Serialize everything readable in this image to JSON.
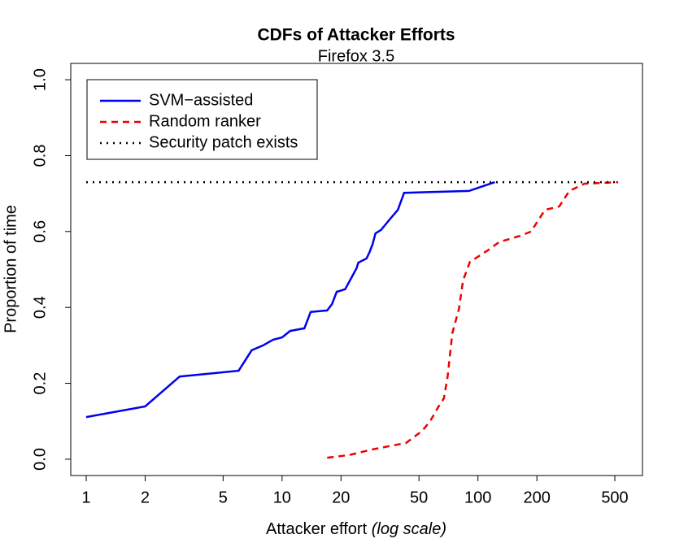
{
  "chart_data": {
    "type": "line",
    "title": "CDFs of Attacker Efforts",
    "subtitle": "Firefox 3.5",
    "xlabel": "Attacker effort",
    "xlabel_note": "(log scale)",
    "ylabel": "Proportion of time",
    "xscale": "log",
    "xlim": [
      0.834,
      692
    ],
    "ylim": [
      -0.043,
      1.043
    ],
    "xticks": [
      1,
      2,
      5,
      10,
      20,
      50,
      100,
      200,
      500
    ],
    "yticks": [
      {
        "value": 0,
        "label": "0.0"
      },
      {
        "value": 0.2,
        "label": "0.2"
      },
      {
        "value": 0.4,
        "label": "0.4"
      },
      {
        "value": 0.6,
        "label": "0.6"
      },
      {
        "value": 0.8,
        "label": "0.8"
      },
      {
        "value": 1,
        "label": "1.0"
      }
    ],
    "legend": "topleft",
    "series": [
      {
        "name": "SVM−assisted",
        "color": "#0000ee",
        "dash": "solid",
        "x": [
          1,
          2,
          3,
          6,
          7,
          8,
          9,
          10,
          11,
          13,
          14,
          17,
          18,
          19,
          21,
          24,
          24.5,
          27,
          28,
          29,
          30,
          32,
          36,
          39,
          42,
          90,
          122
        ],
        "values": [
          0.111,
          0.139,
          0.218,
          0.233,
          0.287,
          0.3,
          0.315,
          0.321,
          0.338,
          0.345,
          0.388,
          0.392,
          0.409,
          0.441,
          0.448,
          0.503,
          0.518,
          0.529,
          0.546,
          0.567,
          0.595,
          0.604,
          0.636,
          0.657,
          0.702,
          0.707,
          0.73
        ]
      },
      {
        "name": "Random ranker",
        "color": "#ee0000",
        "dash": "dashed",
        "x": [
          17,
          22,
          29,
          43,
          52,
          57,
          63,
          67,
          70,
          74,
          80,
          84,
          91,
          112,
          128,
          165,
          187,
          220,
          260,
          293,
          350,
          520
        ],
        "values": [
          0.004,
          0.011,
          0.026,
          0.043,
          0.075,
          0.1,
          0.139,
          0.16,
          0.218,
          0.332,
          0.396,
          0.471,
          0.52,
          0.55,
          0.572,
          0.589,
          0.6,
          0.657,
          0.666,
          0.707,
          0.726,
          0.73
        ]
      },
      {
        "name": "Security patch exists",
        "color": "#000000",
        "dash": "dotted",
        "x": [
          1,
          520
        ],
        "values": [
          0.73,
          0.73
        ]
      }
    ]
  }
}
